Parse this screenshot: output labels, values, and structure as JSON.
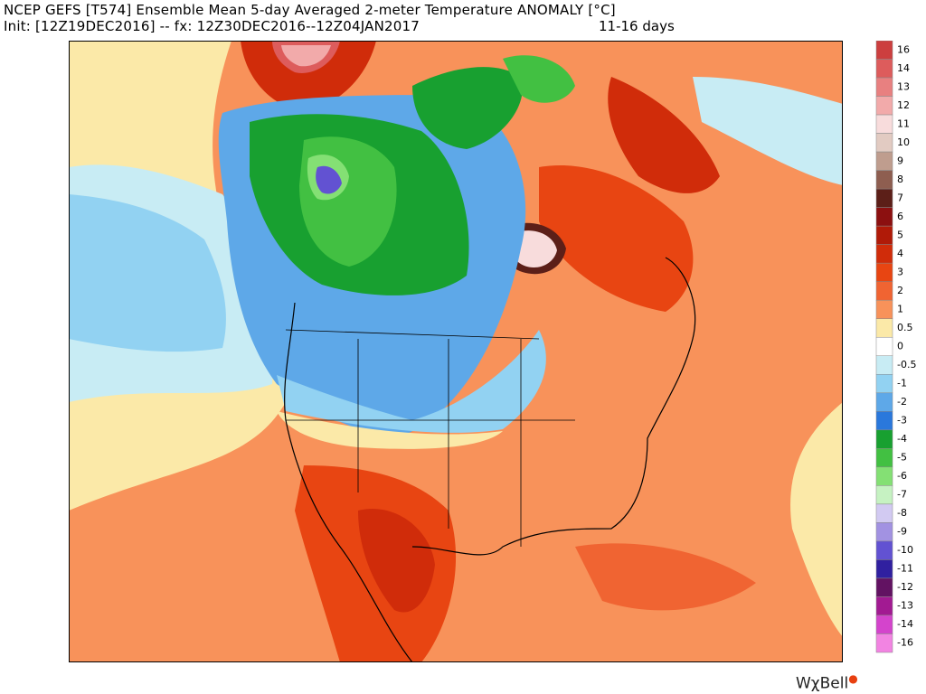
{
  "header": {
    "title": "NCEP GEFS [T574] Ensemble Mean 5-day Averaged 2-meter Temperature ANOMALY [°C]",
    "init": "Init: [12Z19DEC2016] -- fx: 12Z30DEC2016--12Z04JAN2017",
    "range": "11-16 days"
  },
  "colorbar": [
    {
      "label": "16",
      "color": "#cc3f3f"
    },
    {
      "label": "14",
      "color": "#dd5c5c"
    },
    {
      "label": "13",
      "color": "#e88080"
    },
    {
      "label": "12",
      "color": "#f2aaaa"
    },
    {
      "label": "11",
      "color": "#f8dcdc"
    },
    {
      "label": "10",
      "color": "#e2cbc2"
    },
    {
      "label": "9",
      "color": "#bf9d8e"
    },
    {
      "label": "8",
      "color": "#8e5e50"
    },
    {
      "label": "7",
      "color": "#5c1f18"
    },
    {
      "label": "6",
      "color": "#8c1010"
    },
    {
      "label": "5",
      "color": "#b01a08"
    },
    {
      "label": "4",
      "color": "#d02c0a"
    },
    {
      "label": "3",
      "color": "#e84512"
    },
    {
      "label": "2",
      "color": "#f06432"
    },
    {
      "label": "1",
      "color": "#f8925a"
    },
    {
      "label": "0.5",
      "color": "#fbe9a8"
    },
    {
      "label": "0",
      "color": "#ffffff"
    },
    {
      "label": "-0.5",
      "color": "#c8ecf4"
    },
    {
      "label": "-1",
      "color": "#92d2f2"
    },
    {
      "label": "-2",
      "color": "#5ea8e8"
    },
    {
      "label": "-3",
      "color": "#2a78dc"
    },
    {
      "label": "-4",
      "color": "#18a030"
    },
    {
      "label": "-5",
      "color": "#42c042"
    },
    {
      "label": "-6",
      "color": "#84e074"
    },
    {
      "label": "-7",
      "color": "#c6f2c2"
    },
    {
      "label": "-8",
      "color": "#d2caf2"
    },
    {
      "label": "-9",
      "color": "#a292e2"
    },
    {
      "label": "-10",
      "color": "#6252d2"
    },
    {
      "label": "-11",
      "color": "#3020a0"
    },
    {
      "label": "-12",
      "color": "#621262"
    },
    {
      "label": "-13",
      "color": "#a21a92"
    },
    {
      "label": "-14",
      "color": "#d444cc"
    },
    {
      "label": "-16",
      "color": "#f284e2"
    }
  ],
  "logo": "WχBell"
}
